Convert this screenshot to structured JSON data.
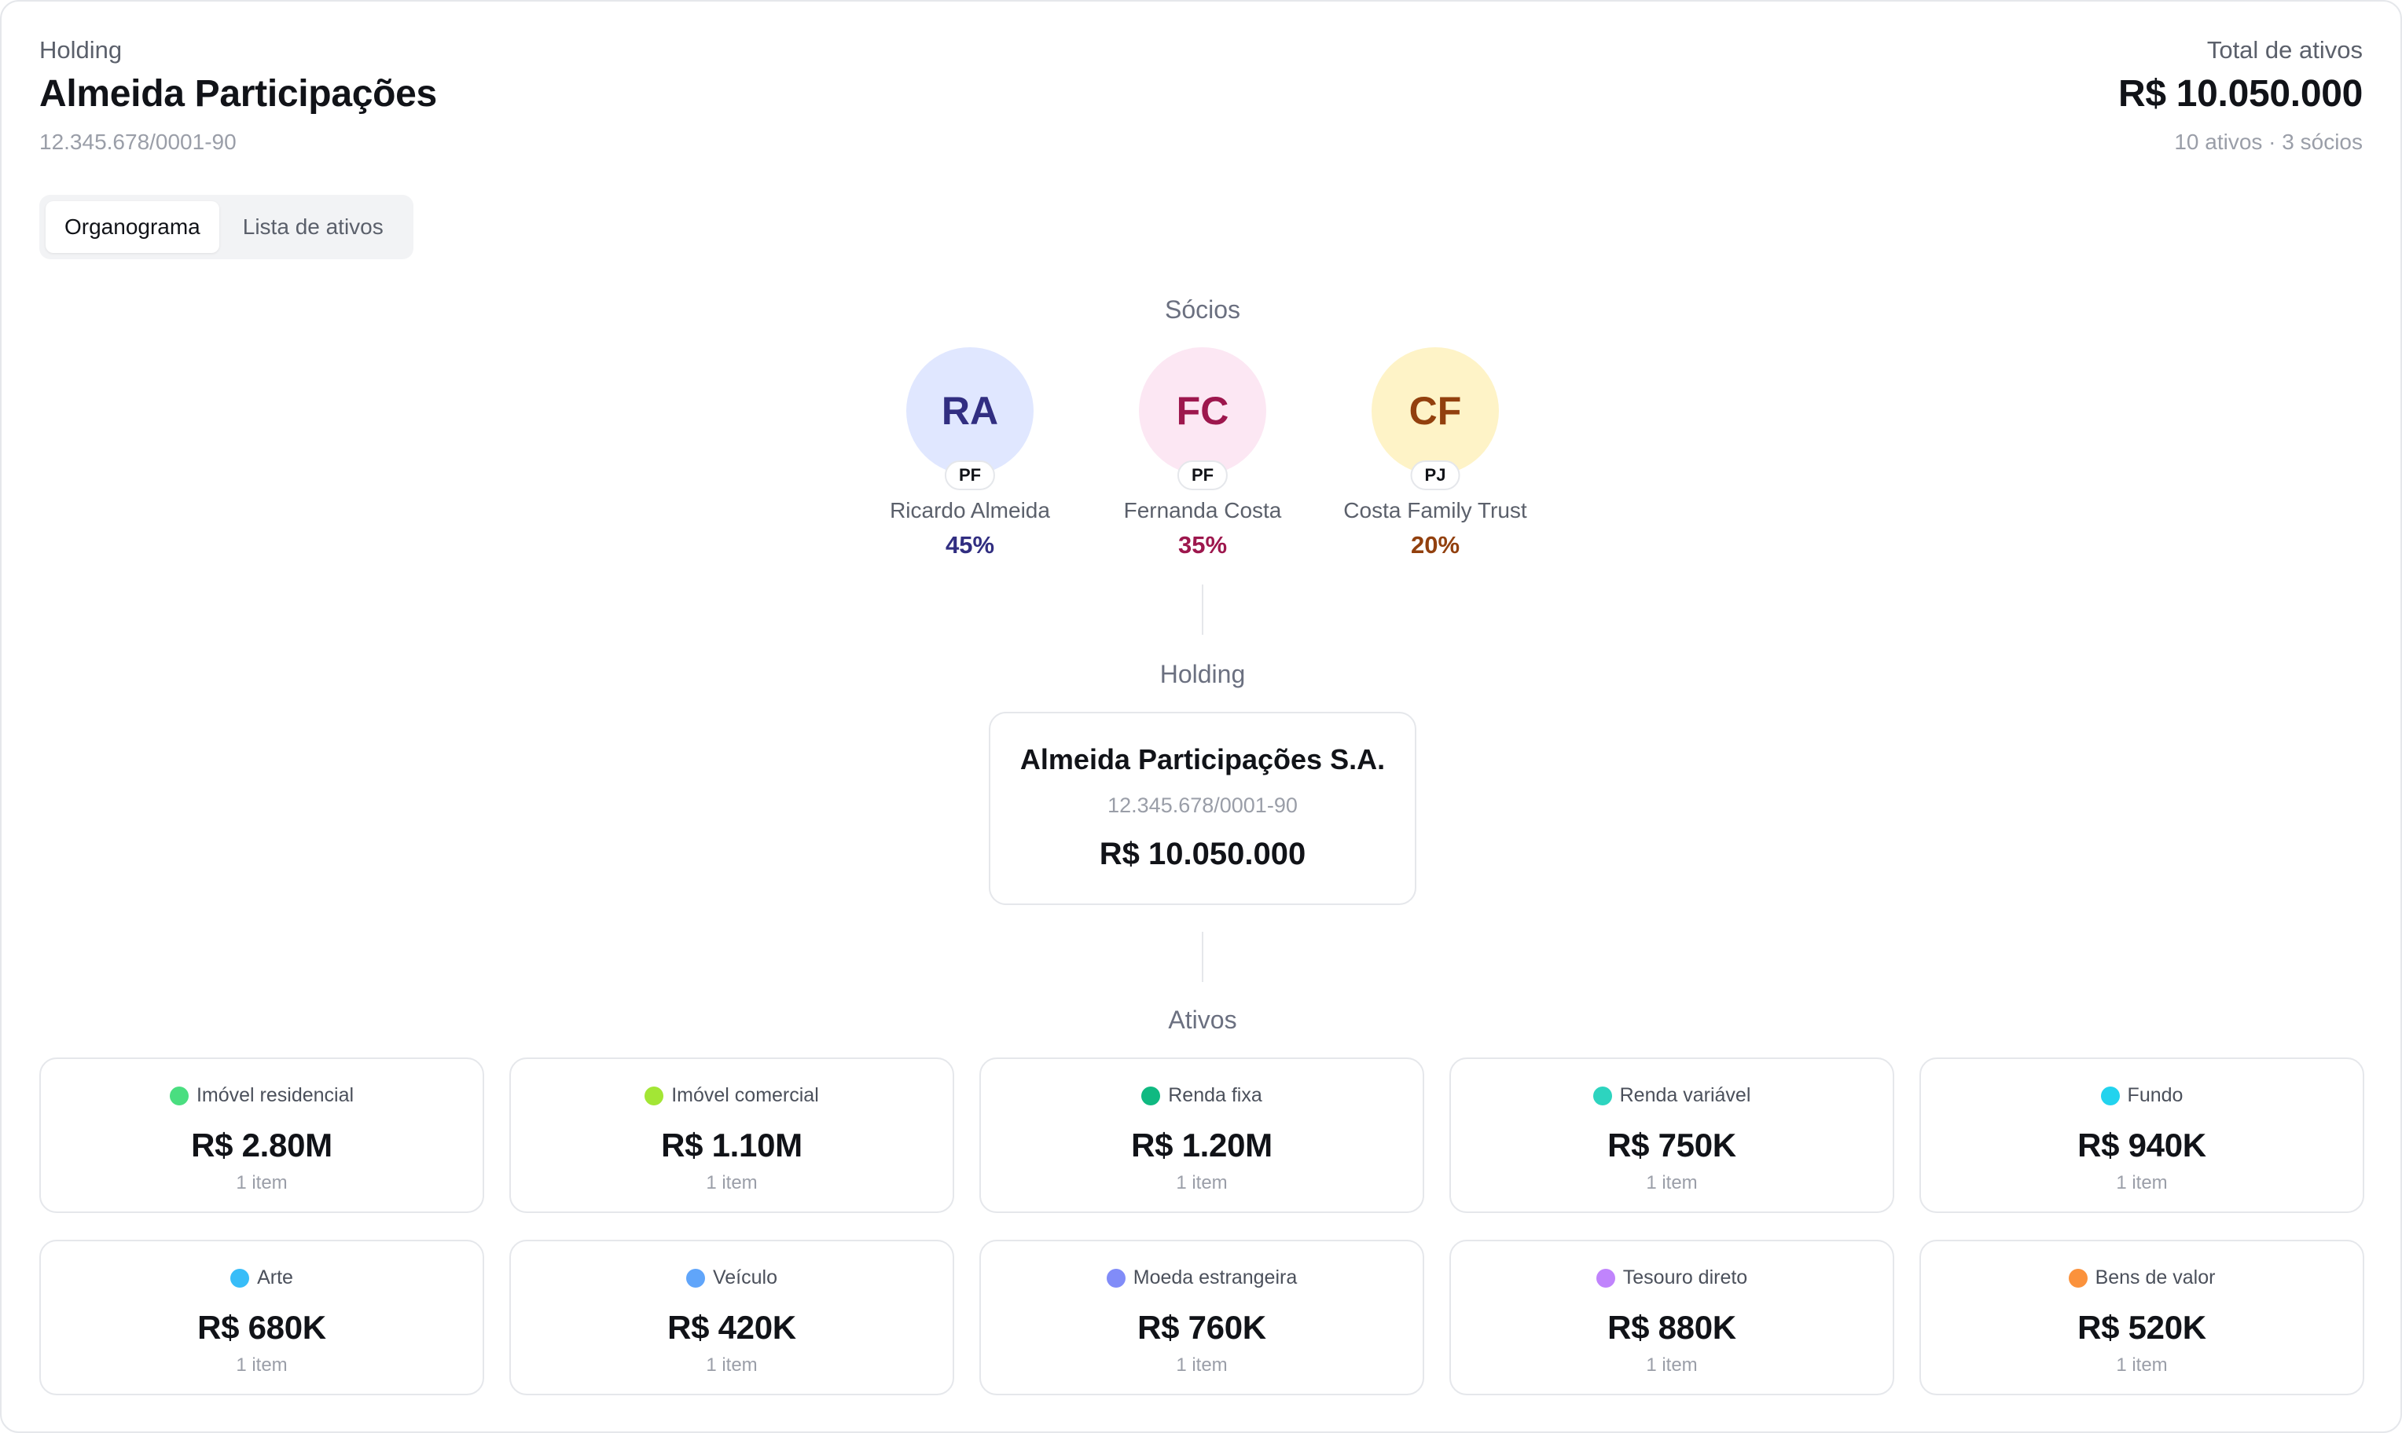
{
  "header": {
    "label": "Holding",
    "title": "Almeida Participações",
    "document": "12.345.678/0001-90",
    "total_label": "Total de ativos",
    "total_value": "R$ 10.050.000",
    "counts": "10 ativos · 3 sócios"
  },
  "tabs": [
    {
      "label": "Organograma",
      "active": true
    },
    {
      "label": "Lista de ativos",
      "active": false
    }
  ],
  "partners_section": {
    "label": "Sócios",
    "partners": [
      {
        "initials": "RA",
        "type": "PF",
        "name": "Ricardo Almeida",
        "share": "45%",
        "bg": "#e0e7ff",
        "fg": "#312e81"
      },
      {
        "initials": "FC",
        "type": "PF",
        "name": "Fernanda Costa",
        "share": "35%",
        "bg": "#fce7f3",
        "fg": "#9d174d"
      },
      {
        "initials": "CF",
        "type": "PJ",
        "name": "Costa Family Trust",
        "share": "20%",
        "bg": "#fef3c7",
        "fg": "#92400e"
      }
    ]
  },
  "holding_section": {
    "label": "Holding",
    "name": "Almeida Participações S.A.",
    "document": "12.345.678/0001-90",
    "value": "R$ 10.050.000"
  },
  "assets_section": {
    "label": "Ativos",
    "assets": [
      {
        "category": "Imóvel residencial",
        "value": "R$ 2.80M",
        "count": "1 item",
        "color": "#4ade80"
      },
      {
        "category": "Imóvel comercial",
        "value": "R$ 1.10M",
        "count": "1 item",
        "color": "#a3e635"
      },
      {
        "category": "Renda fixa",
        "value": "R$ 1.20M",
        "count": "1 item",
        "color": "#10b981"
      },
      {
        "category": "Renda variável",
        "value": "R$ 750K",
        "count": "1 item",
        "color": "#2dd4bf"
      },
      {
        "category": "Fundo",
        "value": "R$ 940K",
        "count": "1 item",
        "color": "#22d3ee"
      },
      {
        "category": "Arte",
        "value": "R$ 680K",
        "count": "1 item",
        "color": "#38bdf8"
      },
      {
        "category": "Veículo",
        "value": "R$ 420K",
        "count": "1 item",
        "color": "#60a5fa"
      },
      {
        "category": "Moeda estrangeira",
        "value": "R$ 760K",
        "count": "1 item",
        "color": "#818cf8"
      },
      {
        "category": "Tesouro direto",
        "value": "R$ 880K",
        "count": "1 item",
        "color": "#c084fc"
      },
      {
        "category": "Bens de valor",
        "value": "R$ 520K",
        "count": "1 item",
        "color": "#fb923c"
      }
    ]
  }
}
